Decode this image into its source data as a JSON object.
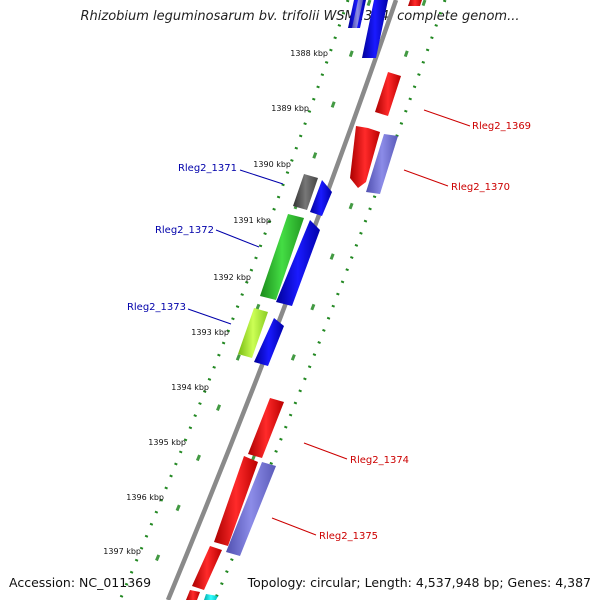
{
  "title": "Rhizobium leguminosarum bv. trifolii WSM2304, complete genom...",
  "footer": {
    "accession": "Accession: NC_011369",
    "summary": "Topology: circular; Length: 4,537,948 bp; Genes: 4,387"
  },
  "kbp_ticks": [
    "1388 kbp",
    "1389 kbp",
    "1390 kbp",
    "1391 kbp",
    "1392 kbp",
    "1393 kbp",
    "1394 kbp",
    "1395 kbp",
    "1396 kbp",
    "1397 kbp"
  ],
  "gene_labels": [
    {
      "text": "Rleg2_1369",
      "color": "#cc0000"
    },
    {
      "text": "Rleg2_1370",
      "color": "#cc0000"
    },
    {
      "text": "Rleg2_1371",
      "color": "#0000aa"
    },
    {
      "text": "Rleg2_1372",
      "color": "#0000aa"
    },
    {
      "text": "Rleg2_1373",
      "color": "#0000aa"
    },
    {
      "text": "Rleg2_1374",
      "color": "#cc0000"
    },
    {
      "text": "Rleg2_1375",
      "color": "#cc0000"
    }
  ],
  "colors": {
    "cds_red": "#ff0000",
    "cds_blue": "#0000ee",
    "gene_violet": "#7070dd",
    "gene_green": "#33cc33",
    "gene_lime": "#aaee33",
    "gene_gray": "#555555",
    "backbone": "#888888",
    "dotted_ring": "#228822"
  }
}
